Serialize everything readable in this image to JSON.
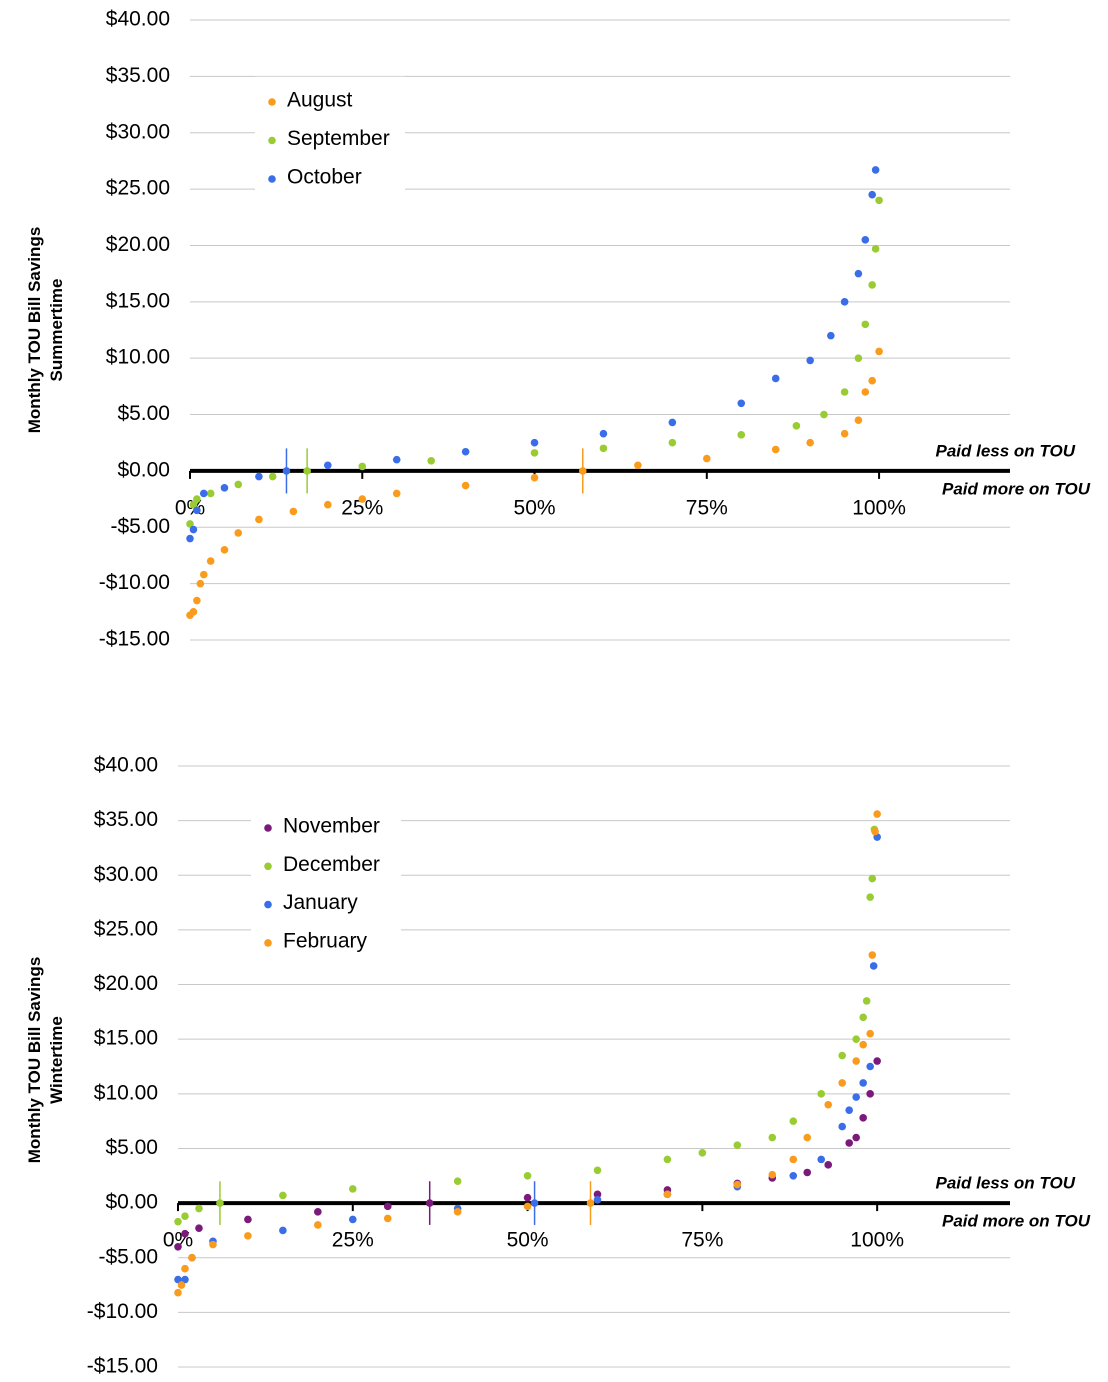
{
  "chart_data": [
    {
      "type": "scatter",
      "ylabel": [
        "Monthly TOU Bill Savings",
        "Summertime"
      ],
      "annotations": [
        "Paid less on TOU",
        "Paid more on TOU"
      ],
      "xlim": [
        0,
        119
      ],
      "ylim": [
        -15,
        40
      ],
      "xticks": [
        {
          "value": 0,
          "label": "0%"
        },
        {
          "value": 25,
          "label": "25%"
        },
        {
          "value": 50,
          "label": "50%"
        },
        {
          "value": 75,
          "label": "75%"
        },
        {
          "value": 100,
          "label": "100%"
        }
      ],
      "yticks": [
        {
          "value": -15,
          "label": "-$15.00"
        },
        {
          "value": -10,
          "label": "-$10.00"
        },
        {
          "value": -5,
          "label": "-$5.00"
        },
        {
          "value": 0,
          "label": "$0.00"
        },
        {
          "value": 5,
          "label": "$5.00"
        },
        {
          "value": 10,
          "label": "$10.00"
        },
        {
          "value": 15,
          "label": "$15.00"
        },
        {
          "value": 20,
          "label": "$20.00"
        },
        {
          "value": 25,
          "label": "$25.00"
        },
        {
          "value": 30,
          "label": "$30.00"
        },
        {
          "value": 35,
          "label": "$35.00"
        },
        {
          "value": 40,
          "label": "$40.00"
        }
      ],
      "grid": true,
      "legend": "upper left",
      "series": [
        {
          "name": "August",
          "color": "#f99b1c",
          "zero_cross": 57,
          "x": [
            0,
            0.5,
            1,
            1.5,
            2,
            3,
            5,
            7,
            10,
            15,
            20,
            25,
            30,
            40,
            50,
            57,
            65,
            75,
            85,
            90,
            95,
            97,
            98,
            99,
            100
          ],
          "values": [
            -12.8,
            -12.5,
            -11.5,
            -10,
            -9.2,
            -8,
            -7,
            -5.5,
            -4.3,
            -3.6,
            -3,
            -2.5,
            -2,
            -1.3,
            -0.6,
            0,
            0.5,
            1.1,
            1.9,
            2.5,
            3.3,
            4.5,
            7,
            8,
            10.6
          ]
        },
        {
          "name": "September",
          "color": "#99cc33",
          "zero_cross": 17,
          "x": [
            0,
            0.5,
            1,
            3,
            7,
            12,
            17,
            25,
            35,
            50,
            60,
            70,
            80,
            88,
            92,
            95,
            97,
            98,
            99,
            99.5,
            100
          ],
          "values": [
            -4.7,
            -3,
            -2.5,
            -2,
            -1.2,
            -0.5,
            0,
            0.4,
            0.9,
            1.6,
            2,
            2.5,
            3.2,
            4,
            5,
            7,
            10,
            13,
            16.5,
            19.7,
            24
          ]
        },
        {
          "name": "October",
          "color": "#3a6ee8",
          "zero_cross": 14,
          "x": [
            0,
            0.5,
            1,
            2,
            5,
            10,
            14,
            20,
            30,
            40,
            50,
            60,
            70,
            80,
            85,
            90,
            93,
            95,
            97,
            98,
            99,
            99.5
          ],
          "values": [
            -6,
            -5.2,
            -3.5,
            -2,
            -1.5,
            -0.5,
            0,
            0.5,
            1,
            1.7,
            2.5,
            3.3,
            4.3,
            6,
            8.2,
            9.8,
            12,
            15,
            17.5,
            20.5,
            24.5,
            26.7
          ]
        }
      ]
    },
    {
      "type": "scatter",
      "ylabel": [
        "Monthly TOU Bill Savings",
        "Wintertime"
      ],
      "annotations": [
        "Paid less on TOU",
        "Paid more on TOU"
      ],
      "xlim": [
        0,
        119
      ],
      "ylim": [
        -15,
        40
      ],
      "xticks": [
        {
          "value": 0,
          "label": "0%"
        },
        {
          "value": 25,
          "label": "25%"
        },
        {
          "value": 50,
          "label": "50%"
        },
        {
          "value": 75,
          "label": "75%"
        },
        {
          "value": 100,
          "label": "100%"
        }
      ],
      "yticks": [
        {
          "value": -15,
          "label": "-$15.00"
        },
        {
          "value": -10,
          "label": "-$10.00"
        },
        {
          "value": -5,
          "label": "-$5.00"
        },
        {
          "value": 0,
          "label": "$0.00"
        },
        {
          "value": 5,
          "label": "$5.00"
        },
        {
          "value": 10,
          "label": "$10.00"
        },
        {
          "value": 15,
          "label": "$15.00"
        },
        {
          "value": 20,
          "label": "$20.00"
        },
        {
          "value": 25,
          "label": "$25.00"
        },
        {
          "value": 30,
          "label": "$30.00"
        },
        {
          "value": 35,
          "label": "$35.00"
        },
        {
          "value": 40,
          "label": "$40.00"
        }
      ],
      "grid": true,
      "legend": "upper left",
      "series": [
        {
          "name": "November",
          "color": "#7b1a7b",
          "zero_cross": 36,
          "x": [
            0,
            1,
            3,
            10,
            20,
            30,
            36,
            50,
            60,
            70,
            80,
            85,
            90,
            93,
            96,
            97,
            98,
            99,
            100
          ],
          "values": [
            -4,
            -2.8,
            -2.3,
            -1.5,
            -0.8,
            -0.3,
            0,
            0.5,
            0.8,
            1.2,
            1.8,
            2.3,
            2.8,
            3.5,
            5.5,
            6,
            7.8,
            10,
            13
          ]
        },
        {
          "name": "December",
          "color": "#99cc33",
          "zero_cross": 6,
          "x": [
            0,
            1,
            3,
            6,
            15,
            25,
            40,
            50,
            60,
            70,
            75,
            80,
            85,
            88,
            92,
            95,
            97,
            98,
            98.5,
            99,
            99.3,
            99.6
          ],
          "values": [
            -1.7,
            -1.2,
            -0.5,
            0,
            0.7,
            1.3,
            2,
            2.5,
            3,
            4,
            4.6,
            5.3,
            6,
            7.5,
            10,
            13.5,
            15,
            17,
            18.5,
            28,
            29.7,
            34.2
          ]
        },
        {
          "name": "January",
          "color": "#3a6ee8",
          "zero_cross": 51,
          "x": [
            0,
            1,
            2,
            5,
            15,
            25,
            40,
            51,
            60,
            70,
            80,
            88,
            92,
            95,
            96,
            97,
            98,
            99,
            99.5,
            100
          ],
          "values": [
            -7,
            -7,
            -5,
            -3.5,
            -2.5,
            -1.5,
            -0.5,
            0,
            0.3,
            0.8,
            1.5,
            2.5,
            4,
            7,
            8.5,
            9.7,
            11,
            12.5,
            21.7,
            33.5
          ]
        },
        {
          "name": "February",
          "color": "#f99b1c",
          "zero_cross": 59,
          "x": [
            0,
            0.5,
            1,
            2,
            5,
            10,
            20,
            30,
            40,
            50,
            59,
            70,
            80,
            85,
            88,
            90,
            93,
            95,
            97,
            98,
            99,
            99.3,
            99.7,
            100
          ],
          "values": [
            -8.2,
            -7.5,
            -6,
            -5,
            -3.8,
            -3,
            -2,
            -1.4,
            -0.8,
            -0.3,
            0,
            0.8,
            1.7,
            2.6,
            4,
            6,
            9,
            11,
            13,
            14.5,
            15.5,
            22.7,
            34,
            35.6
          ]
        }
      ]
    }
  ]
}
